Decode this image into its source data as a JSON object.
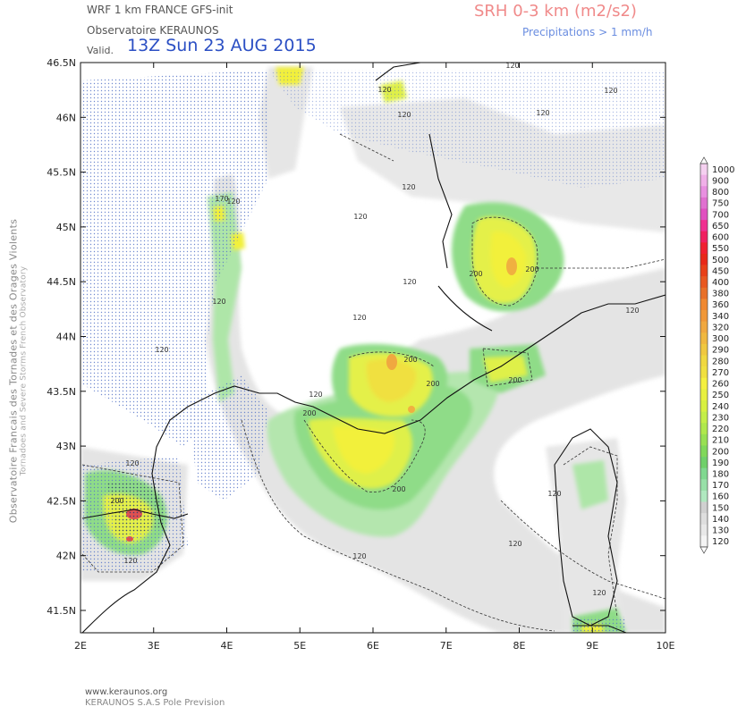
{
  "header": {
    "model_title": "WRF 1 km FRANCE  GFS-init",
    "org": "Observatoire KERAUNOS",
    "valid_label": "Valid.",
    "valid_time": "13Z Sun 23 AUG 2015",
    "field_title": "SRH 0-3 km (m2/s2)",
    "precip_note": "Precipitations > 1 mm/h"
  },
  "side_text": {
    "line1": "Observatoire Francais des Tornades et des Orages Violents",
    "line2": "Tornadoes and Severe Storms French Observatory"
  },
  "footer": {
    "url": "www.keraunos.org",
    "company": "KERAUNOS S.A.S Pole Prevision"
  },
  "map": {
    "lat_labels": [
      "46.5N",
      "46N",
      "45.5N",
      "45N",
      "44.5N",
      "44N",
      "43.5N",
      "43N",
      "42.5N",
      "42N",
      "41.5N"
    ],
    "lon_labels": [
      "2E",
      "3E",
      "4E",
      "5E",
      "6E",
      "7E",
      "8E",
      "9E",
      "10E"
    ],
    "contour_labels": [
      "120",
      "120",
      "120",
      "120",
      "120",
      "120",
      "120",
      "120",
      "120",
      "120",
      "120",
      "120",
      "120",
      "120",
      "120",
      "120",
      "120",
      "120",
      "120",
      "120",
      "170",
      "200",
      "200",
      "200",
      "200",
      "200",
      "200",
      "200",
      "200"
    ],
    "colors": {
      "light_gray": "#e6e6e6",
      "mid_gray": "#cfcfcf",
      "light_green": "#9fe09a",
      "green": "#6fd06a",
      "yellow_green": "#d8f04a",
      "yellow": "#f4f03a",
      "orange": "#f0b040",
      "red": "#e05050",
      "precip_dots": "#5a78c8",
      "coast": "#111111"
    }
  },
  "colorbar": {
    "labels": [
      "1000",
      "900",
      "800",
      "750",
      "700",
      "650",
      "600",
      "550",
      "500",
      "450",
      "400",
      "380",
      "360",
      "340",
      "320",
      "300",
      "290",
      "280",
      "270",
      "260",
      "250",
      "240",
      "230",
      "220",
      "210",
      "200",
      "190",
      "180",
      "170",
      "160",
      "150",
      "140",
      "130",
      "120"
    ],
    "colors": [
      "#f5d0f0",
      "#f0b0e8",
      "#e890e0",
      "#e070d0",
      "#e050c0",
      "#f03090",
      "#f02060",
      "#f02030",
      "#e82818",
      "#e84018",
      "#e85820",
      "#e87028",
      "#f08830",
      "#f09838",
      "#f0a840",
      "#f0b840",
      "#f0c840",
      "#f0d840",
      "#f0e040",
      "#f4f040",
      "#e8f040",
      "#d8f040",
      "#c4ee48",
      "#b0e84c",
      "#98e052",
      "#80d85a",
      "#6fd06a",
      "#80d890",
      "#98e0a8",
      "#b0e8c0",
      "#d0d0d0",
      "#dedede",
      "#e8e8e8",
      "#f4f4f4"
    ]
  }
}
